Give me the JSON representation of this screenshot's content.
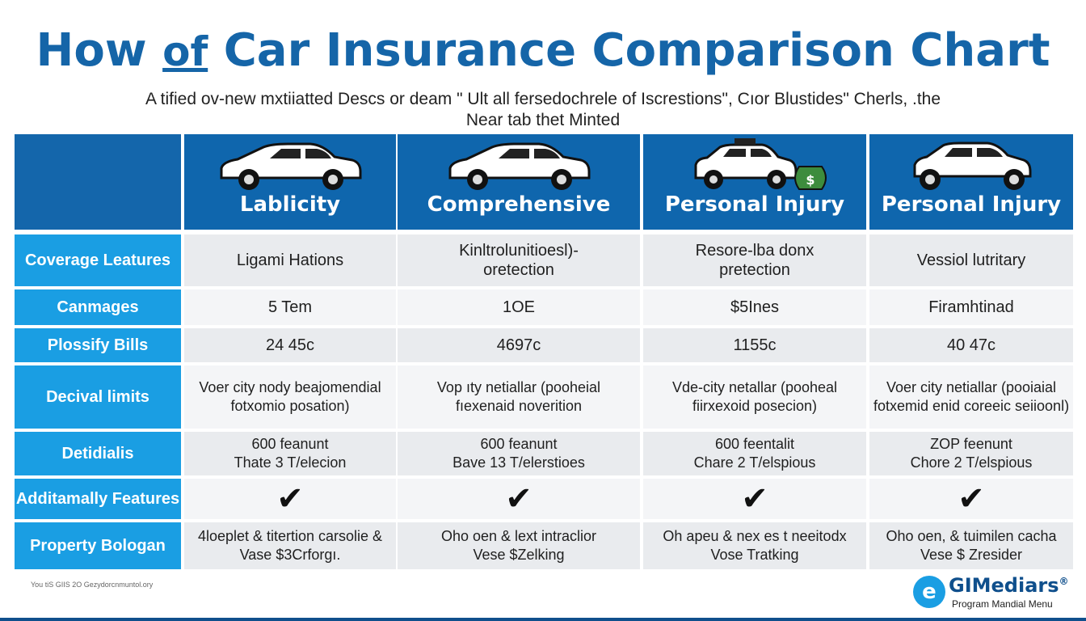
{
  "title": {
    "pre": "How ",
    "of": "of",
    "post": " Car Insurance Comparison Chart"
  },
  "subtitle": "A tified ov-new mxtiiatted Descs or deam \" Ult all fersedochrele of Iscrestions\", Cıor Blustides\" Cherls, .the Near tab thet Minted",
  "columns": [
    {
      "label": "Lablicity",
      "icon": "sedan-car-icon"
    },
    {
      "label": "Comprehensive",
      "icon": "sedan-car-icon"
    },
    {
      "label": "Personal Injury",
      "icon": "police-car-money-bag-icon"
    },
    {
      "label": "Personal Injury",
      "icon": "hatchback-car-icon"
    }
  ],
  "rows": [
    {
      "label": "Coverage Leatures",
      "cells": [
        "Ligami Hations",
        "Kinltrolunitioesl)-\noretection",
        "Resore-lba donx\npretection",
        "Vessiol lutritary"
      ]
    },
    {
      "label": "Canmages",
      "cells": [
        "5 Tem",
        "1OE",
        "$5Ines",
        "Firamhtinad"
      ]
    },
    {
      "label": "Plossify Bills",
      "cells": [
        "24 45c",
        "4697c",
        "1155c",
        "40 47c"
      ]
    },
    {
      "label": "Decival limits",
      "cells": [
        "Voer city nody beajomendial\nfotxomio posation)",
        "Vop ıty netiallar (pooheial\nfıexenaid noverition",
        "Vde-city netallar (pooheal\nfiirxexoid posecion)",
        "Voer city netiallar (pooiaial\nfotxemid enid coreeic seiioonl)"
      ]
    },
    {
      "label": "Detidialis",
      "cells": [
        "600 feanunt\nThate 3 T/elecion",
        "600 feanunt\nBave 13 T/elerstioes",
        "600 feentalit\nChare 2 T/elspious",
        "ZOP feenunt\nChore 2 T/elspious"
      ]
    },
    {
      "label": "Additamally Features",
      "cells": [
        "✔",
        "✔",
        "✔",
        "✔"
      ],
      "check": true
    },
    {
      "label": "Property Bologan",
      "cells": [
        "4loeplet & titertion carsolie &\nVase $3Crforgı.",
        "Oho oen & lext intraclior\nVese $Zelking",
        "Oh apeu & nex es t neeitodx\nVose Tratking",
        "Oho oen, & tuimilen cacha\nVese $ Zresider"
      ]
    }
  ],
  "footnote": "You tiS GIIS 2O Gezydorcnmuntol.ory",
  "logo": {
    "mark": "e",
    "name": "GIMediars",
    "registered": "®",
    "tagline": "Program Mandial Menu"
  },
  "colors": {
    "title": "#1565a8",
    "header": "#0f66ad",
    "row_label": "#1a9ee3",
    "cell": "#e9ebee"
  }
}
